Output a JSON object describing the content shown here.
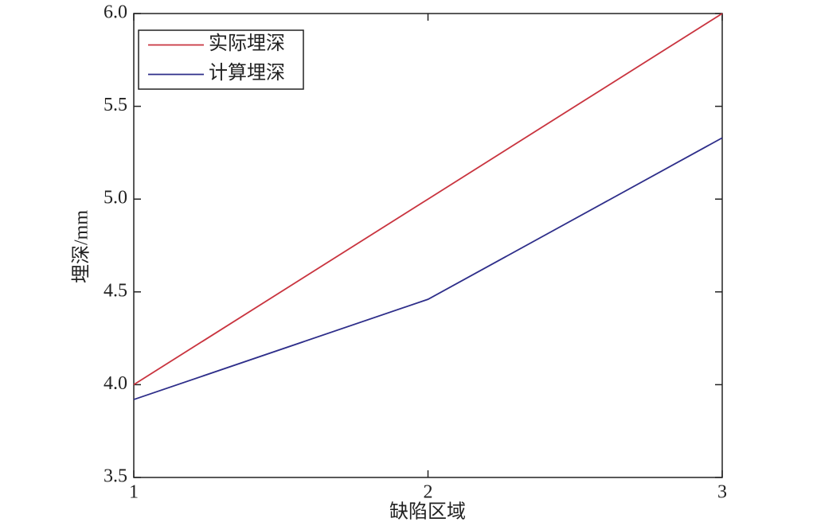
{
  "chart_data": {
    "type": "line",
    "x": [
      1,
      2,
      3
    ],
    "series": [
      {
        "name": "实际埋深",
        "color": "#c9343f",
        "values": [
          4.0,
          5.0,
          6.0
        ]
      },
      {
        "name": "计算埋深",
        "color": "#2e2e8a",
        "values": [
          3.92,
          4.46,
          5.33
        ]
      }
    ],
    "xlabel": "缺陷区域",
    "ylabel": "埋深/mm",
    "xlim": [
      1,
      3
    ],
    "xticks": [
      1,
      2,
      3
    ],
    "ylim": [
      3.5,
      6.0
    ],
    "yticks": [
      {
        "value": 3.5,
        "label": "3.5"
      },
      {
        "value": 4,
        "label": "4.0"
      },
      4.5,
      {
        "value": 5,
        "label": "5.0"
      },
      5.5,
      {
        "value": 6,
        "label": "6.0"
      }
    ],
    "legend": "upper left"
  }
}
